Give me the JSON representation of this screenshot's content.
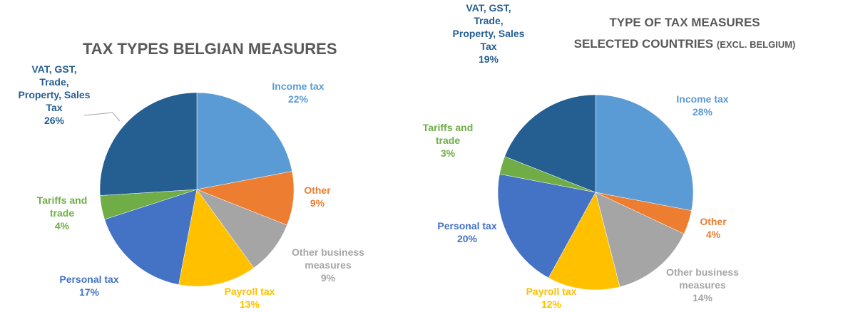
{
  "chart_data": [
    {
      "type": "pie",
      "title": "TAX TYPES BELGIAN MEASURES",
      "categories": [
        "Income tax",
        "Other",
        "Other business\nmeasures",
        "Payroll tax",
        "Personal tax",
        "Tariffs and\ntrade",
        "VAT, GST,\nTrade,\nProperty, Sales\nTax"
      ],
      "values": [
        22,
        9,
        9,
        13,
        17,
        4,
        26
      ],
      "value_labels": [
        "22%",
        "9%",
        "9%",
        "13%",
        "17%",
        "4%",
        "26%"
      ],
      "colors": [
        "#5b9bd5",
        "#ed7d31",
        "#a5a5a5",
        "#ffc000",
        "#4472c4",
        "#70ad47",
        "#255e91"
      ]
    },
    {
      "type": "pie",
      "title": "TYPE OF TAX MEASURES",
      "subtitle": "SELECTED COUNTRIES",
      "subtitle_note": "(EXCL. BELGIUM)",
      "categories": [
        "Income tax",
        "Other",
        "Other business\nmeasures",
        "Payroll tax",
        "Personal tax",
        "Tariffs and\ntrade",
        "VAT, GST,\nTrade,\nProperty, Sales\nTax"
      ],
      "values": [
        28,
        4,
        14,
        12,
        20,
        3,
        19
      ],
      "value_labels": [
        "28%",
        "4%",
        "14%",
        "12%",
        "20%",
        "3%",
        "19%"
      ],
      "colors": [
        "#5b9bd5",
        "#ed7d31",
        "#a5a5a5",
        "#ffc000",
        "#4472c4",
        "#70ad47",
        "#255e91"
      ]
    }
  ]
}
